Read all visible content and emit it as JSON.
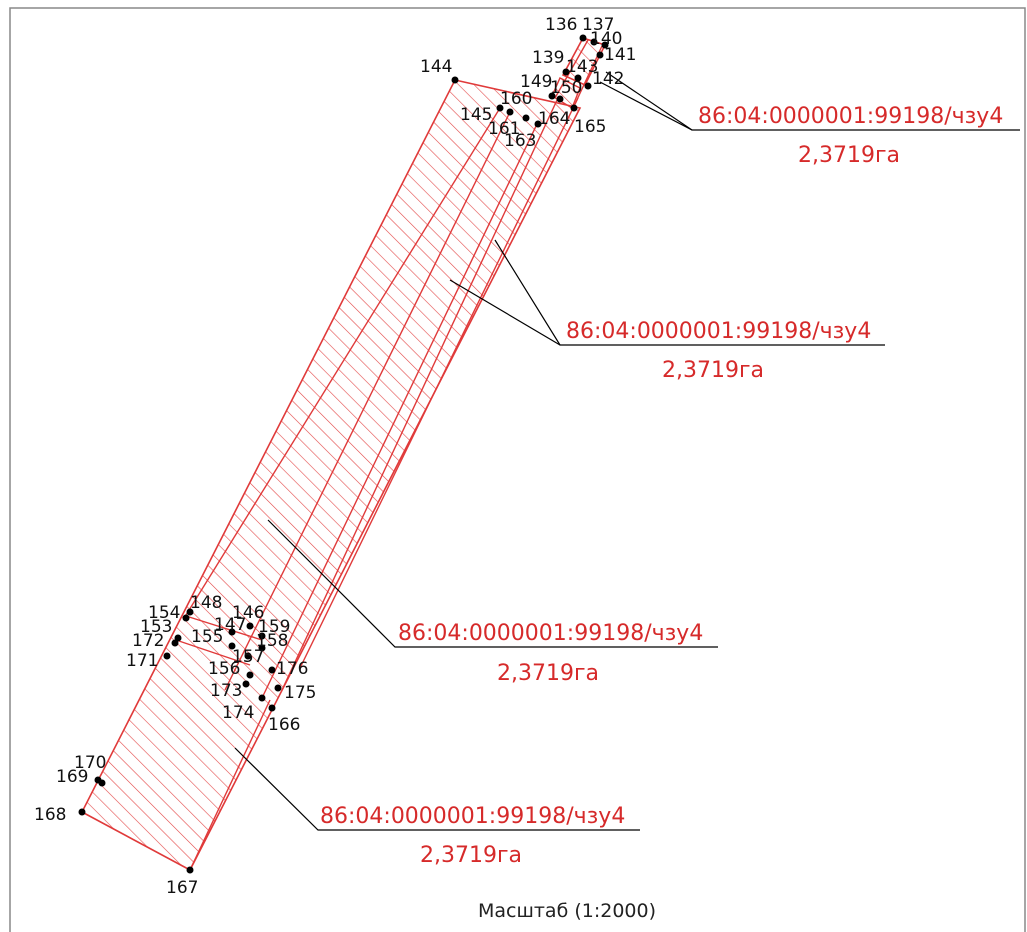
{
  "colors": {
    "parcel_stroke": "#e03a3a",
    "hatch": "#e34848",
    "label_text": "#d62a2a",
    "point": "#000000",
    "leader": "#000000",
    "frame": "#888888"
  },
  "scale_text": "Масштаб (1:2000)",
  "callouts": [
    {
      "cadastral": "86:04:0000001:99198/чзу4",
      "area": "2,3719га"
    },
    {
      "cadastral": "86:04:0000001:99198/чзу4",
      "area": "2,3719га"
    },
    {
      "cadastral": "86:04:0000001:99198/чзу4",
      "area": "2,3719га"
    },
    {
      "cadastral": "86:04:0000001:99198/чзу4",
      "area": "2,3719га"
    }
  ],
  "points": [
    "136",
    "137",
    "140",
    "141",
    "139",
    "143",
    "142",
    "149",
    "150",
    "144",
    "160",
    "145",
    "161",
    "164",
    "163",
    "165",
    "148",
    "154",
    "146",
    "147",
    "159",
    "153",
    "155",
    "158",
    "172",
    "157",
    "171",
    "156",
    "176",
    "173",
    "175",
    "174",
    "166",
    "170",
    "169",
    "168",
    "167"
  ]
}
